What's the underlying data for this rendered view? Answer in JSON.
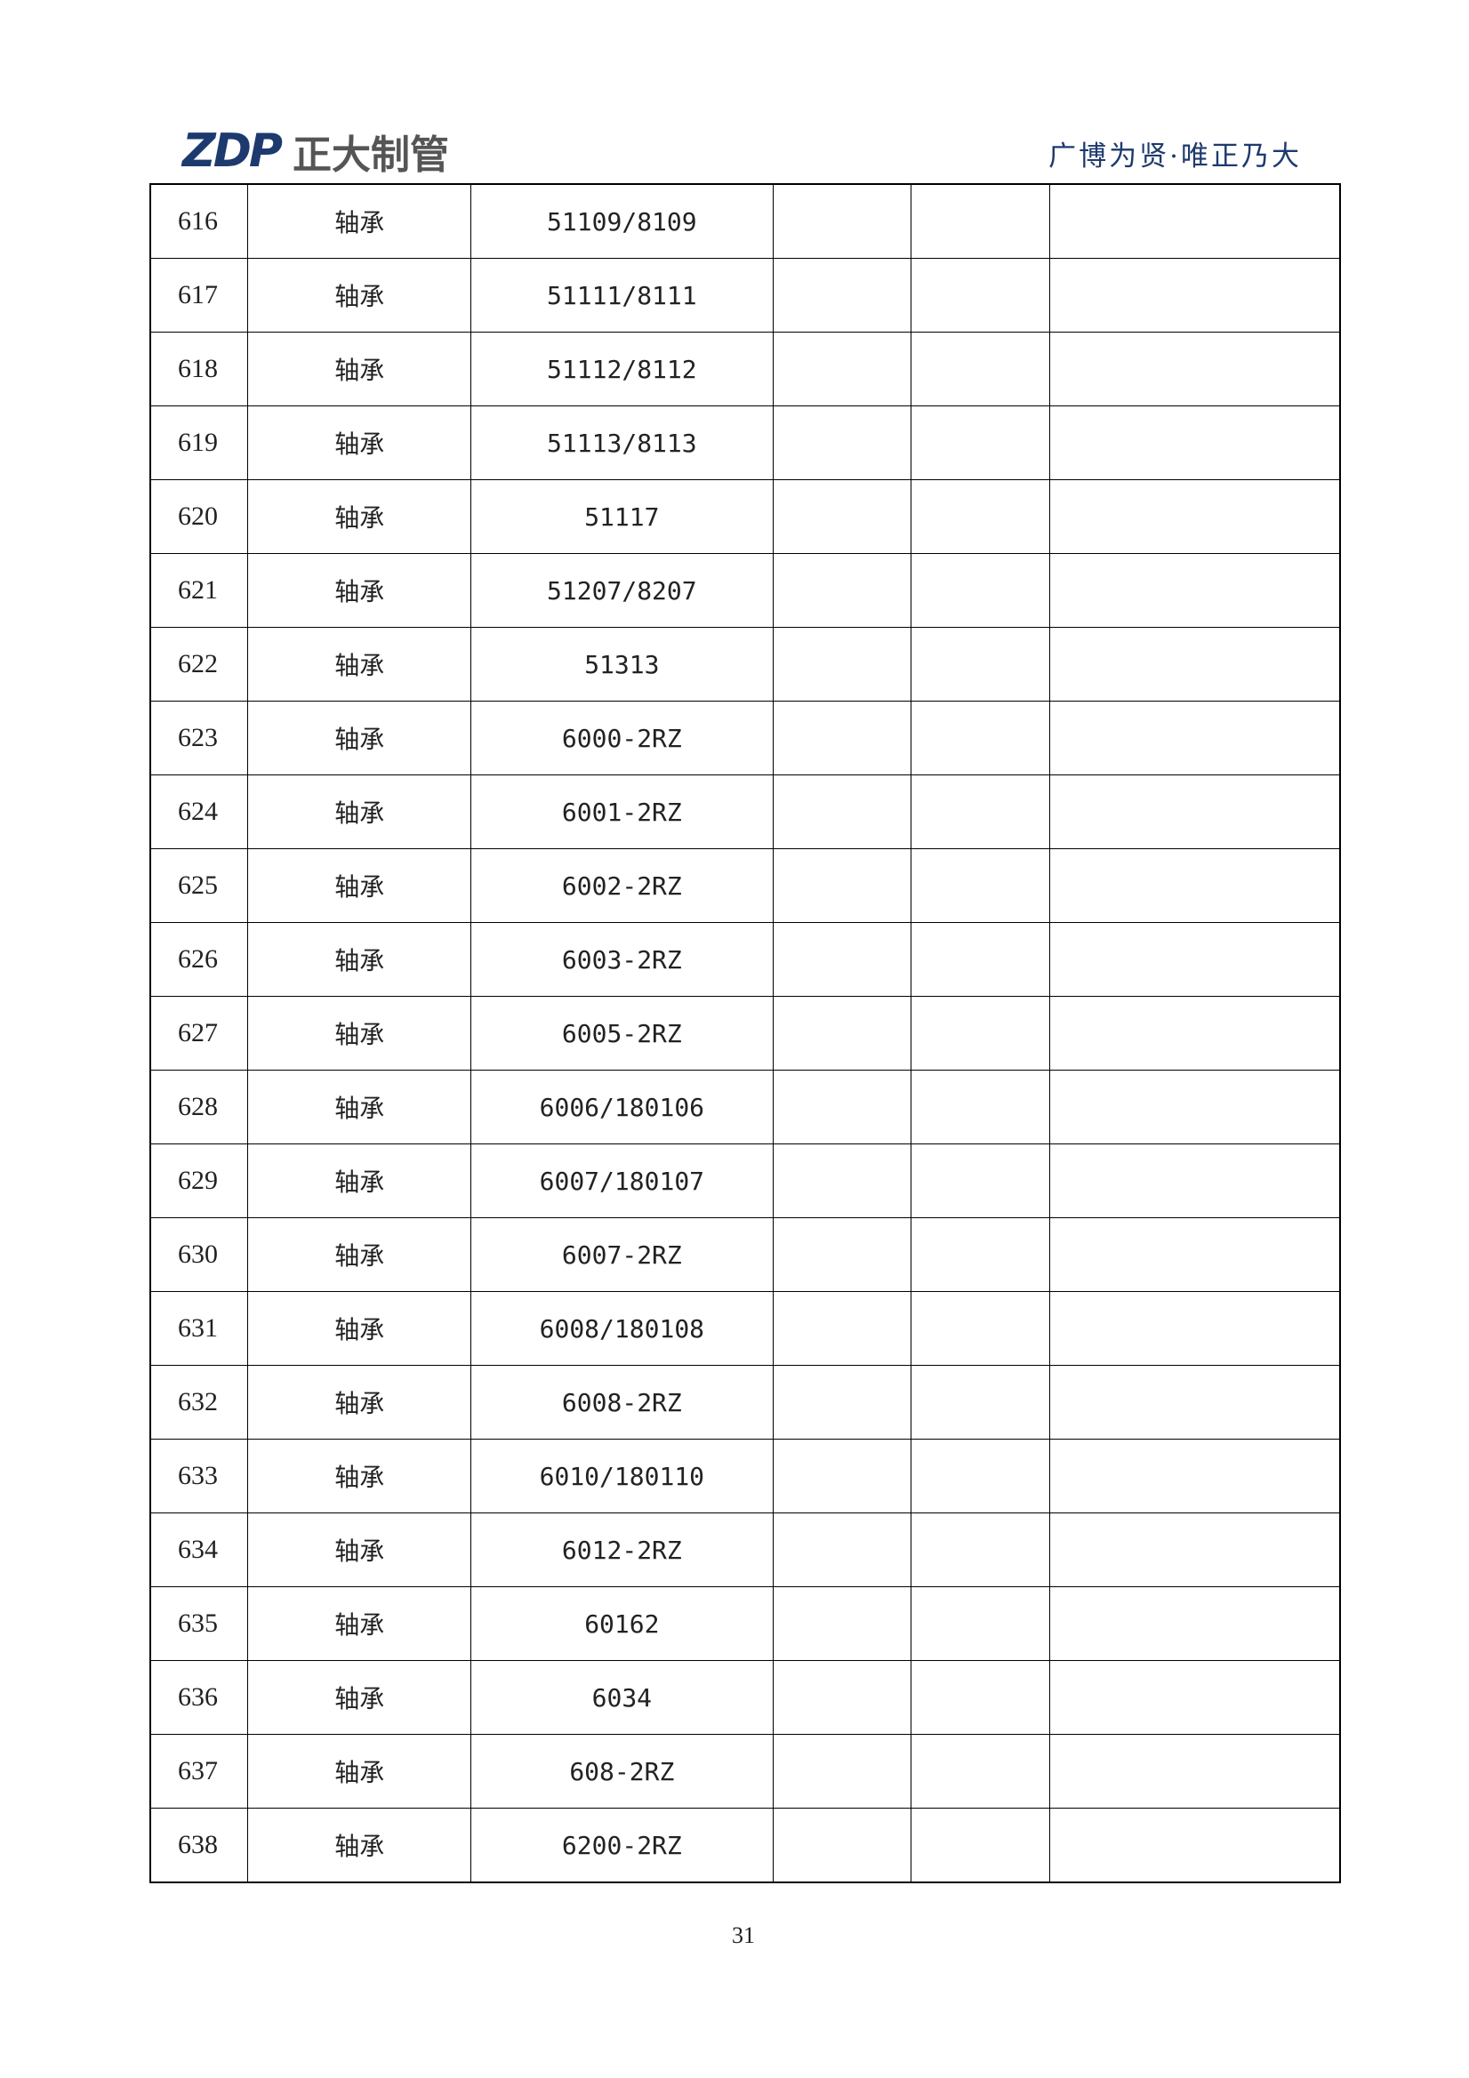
{
  "header": {
    "logo_mark": "ZDP",
    "logo_text": "正大制管",
    "tagline": "广博为贤·唯正乃大"
  },
  "rows": [
    {
      "no": "616",
      "name": "轴承",
      "model": "51109/8109"
    },
    {
      "no": "617",
      "name": "轴承",
      "model": "51111/8111"
    },
    {
      "no": "618",
      "name": "轴承",
      "model": "51112/8112"
    },
    {
      "no": "619",
      "name": "轴承",
      "model": "51113/8113"
    },
    {
      "no": "620",
      "name": "轴承",
      "model": "51117"
    },
    {
      "no": "621",
      "name": "轴承",
      "model": "51207/8207"
    },
    {
      "no": "622",
      "name": "轴承",
      "model": "51313"
    },
    {
      "no": "623",
      "name": "轴承",
      "model": "6000-2RZ"
    },
    {
      "no": "624",
      "name": "轴承",
      "model": "6001-2RZ"
    },
    {
      "no": "625",
      "name": "轴承",
      "model": "6002-2RZ"
    },
    {
      "no": "626",
      "name": "轴承",
      "model": "6003-2RZ"
    },
    {
      "no": "627",
      "name": "轴承",
      "model": "6005-2RZ"
    },
    {
      "no": "628",
      "name": "轴承",
      "model": "6006/180106"
    },
    {
      "no": "629",
      "name": "轴承",
      "model": "6007/180107"
    },
    {
      "no": "630",
      "name": "轴承",
      "model": "6007-2RZ"
    },
    {
      "no": "631",
      "name": "轴承",
      "model": "6008/180108"
    },
    {
      "no": "632",
      "name": "轴承",
      "model": "6008-2RZ"
    },
    {
      "no": "633",
      "name": "轴承",
      "model": "6010/180110"
    },
    {
      "no": "634",
      "name": "轴承",
      "model": "6012-2RZ"
    },
    {
      "no": "635",
      "name": "轴承",
      "model": "60162"
    },
    {
      "no": "636",
      "name": "轴承",
      "model": "6034"
    },
    {
      "no": "637",
      "name": "轴承",
      "model": "608-2RZ"
    },
    {
      "no": "638",
      "name": "轴承",
      "model": "6200-2RZ"
    }
  ],
  "footer": {
    "page_number": "31"
  }
}
